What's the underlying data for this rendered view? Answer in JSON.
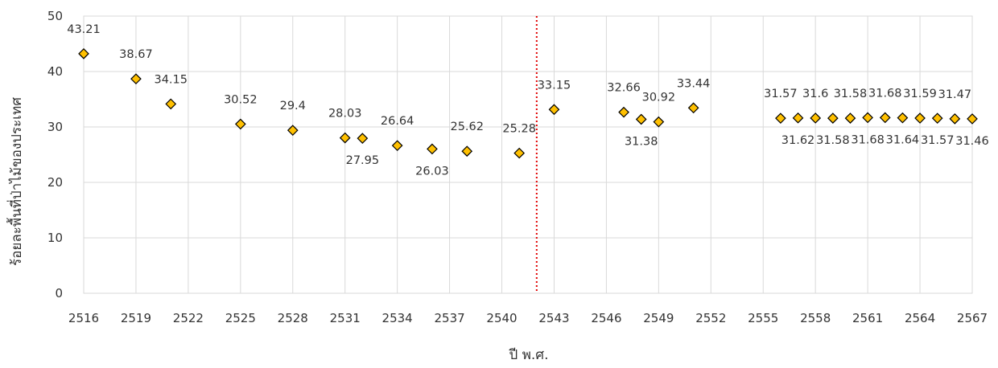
{
  "chart_data": {
    "type": "scatter",
    "title": "",
    "xlabel": "ปี พ.ศ.",
    "ylabel": "ร้อยละพื้นที่ป่าไม้ของประเทศ",
    "xlim": [
      2516,
      2567
    ],
    "ylim": [
      0,
      50
    ],
    "x_ticks": [
      2516,
      2519,
      2522,
      2525,
      2528,
      2531,
      2534,
      2537,
      2540,
      2543,
      2546,
      2549,
      2552,
      2555,
      2558,
      2561,
      2564,
      2567
    ],
    "y_ticks": [
      0,
      10,
      20,
      30,
      40,
      50
    ],
    "grid": true,
    "legend": "none",
    "marker": "diamond",
    "marker_color": "#FFC000",
    "marker_edge_color": "#000000",
    "reference_line": {
      "x": 2542,
      "style": "dotted",
      "color": "#E00000"
    },
    "series": [
      {
        "points": [
          {
            "x": 2516,
            "y": 43.21,
            "label": "43.21",
            "label_pos": "above"
          },
          {
            "x": 2519,
            "y": 38.67,
            "label": "38.67",
            "label_pos": "above"
          },
          {
            "x": 2521,
            "y": 34.15,
            "label": "34.15",
            "label_pos": "above"
          },
          {
            "x": 2525,
            "y": 30.52,
            "label": "30.52",
            "label_pos": "above"
          },
          {
            "x": 2528,
            "y": 29.4,
            "label": "29.4",
            "label_pos": "above"
          },
          {
            "x": 2531,
            "y": 28.03,
            "label": "28.03",
            "label_pos": "above"
          },
          {
            "x": 2532,
            "y": 27.95,
            "label": "27.95",
            "label_pos": "below"
          },
          {
            "x": 2534,
            "y": 26.64,
            "label": "26.64",
            "label_pos": "above"
          },
          {
            "x": 2536,
            "y": 26.03,
            "label": "26.03",
            "label_pos": "below"
          },
          {
            "x": 2538,
            "y": 25.62,
            "label": "25.62",
            "label_pos": "above"
          },
          {
            "x": 2541,
            "y": 25.28,
            "label": "25.28",
            "label_pos": "above"
          },
          {
            "x": 2543,
            "y": 33.15,
            "label": "33.15",
            "label_pos": "above"
          },
          {
            "x": 2547,
            "y": 32.66,
            "label": "32.66",
            "label_pos": "above"
          },
          {
            "x": 2548,
            "y": 31.38,
            "label": "31.38",
            "label_pos": "below"
          },
          {
            "x": 2549,
            "y": 30.92,
            "label": "30.92",
            "label_pos": "above"
          },
          {
            "x": 2551,
            "y": 33.44,
            "label": "33.44",
            "label_pos": "above"
          },
          {
            "x": 2556,
            "y": 31.57,
            "label": "31.57",
            "label_pos": "above"
          },
          {
            "x": 2557,
            "y": 31.62,
            "label": "31.62",
            "label_pos": "below"
          },
          {
            "x": 2558,
            "y": 31.6,
            "label": "31.6",
            "label_pos": "above"
          },
          {
            "x": 2559,
            "y": 31.58,
            "label": "31.58",
            "label_pos": "below"
          },
          {
            "x": 2560,
            "y": 31.58,
            "label": "31.58",
            "label_pos": "above"
          },
          {
            "x": 2561,
            "y": 31.68,
            "label": "31.68",
            "label_pos": "below"
          },
          {
            "x": 2562,
            "y": 31.68,
            "label": "31.68",
            "label_pos": "above"
          },
          {
            "x": 2563,
            "y": 31.64,
            "label": "31.64",
            "label_pos": "below"
          },
          {
            "x": 2564,
            "y": 31.59,
            "label": "31.59",
            "label_pos": "above"
          },
          {
            "x": 2565,
            "y": 31.57,
            "label": "31.57",
            "label_pos": "below"
          },
          {
            "x": 2566,
            "y": 31.47,
            "label": "31.47",
            "label_pos": "above"
          },
          {
            "x": 2567,
            "y": 31.46,
            "label": "31.46",
            "label_pos": "below"
          }
        ]
      }
    ]
  }
}
